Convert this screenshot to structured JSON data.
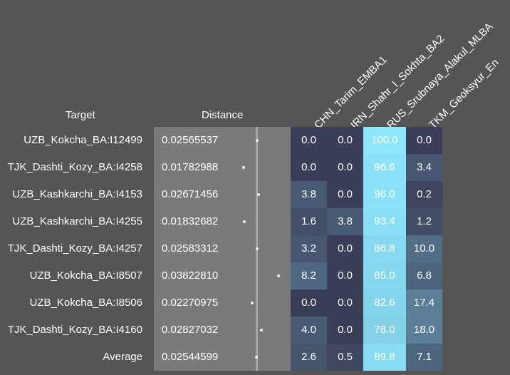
{
  "chart_data": {
    "type": "table",
    "headers": {
      "target": "Target",
      "distance": "Distance"
    },
    "columns": [
      "CHN_Tarim_EMBA1",
      "IRN_Shahr_I_Sokhta_BA2",
      "RUS_Srubnaya_Alakul_MLBA",
      "TKM_Geoksyur_En"
    ],
    "rows": [
      {
        "target": "UZB_Kokcha_BA:I12499",
        "distance": "0.02565537",
        "values": [
          "0.0",
          "0.0",
          "100.0",
          "0.0"
        ]
      },
      {
        "target": "TJK_Dashti_Kozy_BA:I4258",
        "distance": "0.01782988",
        "values": [
          "0.0",
          "0.0",
          "96.6",
          "3.4"
        ]
      },
      {
        "target": "UZB_Kashkarchi_BA:I4153",
        "distance": "0.02671456",
        "values": [
          "3.8",
          "0.0",
          "96.0",
          "0.2"
        ]
      },
      {
        "target": "UZB_Kashkarchi_BA:I4255",
        "distance": "0.01832682",
        "values": [
          "1.6",
          "3.8",
          "93.4",
          "1.2"
        ]
      },
      {
        "target": "TJK_Dashti_Kozy_BA:I4257",
        "distance": "0.02583312",
        "values": [
          "3.2",
          "0.0",
          "86.8",
          "10.0"
        ]
      },
      {
        "target": "UZB_Kokcha_BA:I8507",
        "distance": "0.03822810",
        "values": [
          "8.2",
          "0.0",
          "85.0",
          "6.8"
        ]
      },
      {
        "target": "UZB_Kokcha_BA:I8506",
        "distance": "0.02270975",
        "values": [
          "0.0",
          "0.0",
          "82.6",
          "17.4"
        ]
      },
      {
        "target": "TJK_Dashti_Kozy_BA:I4160",
        "distance": "0.02827032",
        "values": [
          "4.0",
          "0.0",
          "78.0",
          "18.0"
        ]
      },
      {
        "target": "Average",
        "distance": "0.02544599",
        "values": [
          "2.6",
          "0.5",
          "89.8",
          "7.1"
        ]
      }
    ],
    "distance_axis_range": [
      0,
      0.045
    ],
    "colors": {
      "background": "#555555",
      "distance_panel": "#7a7a7a",
      "cell_low": "#3b3e58",
      "cell_high": "#8ce6fc"
    }
  }
}
